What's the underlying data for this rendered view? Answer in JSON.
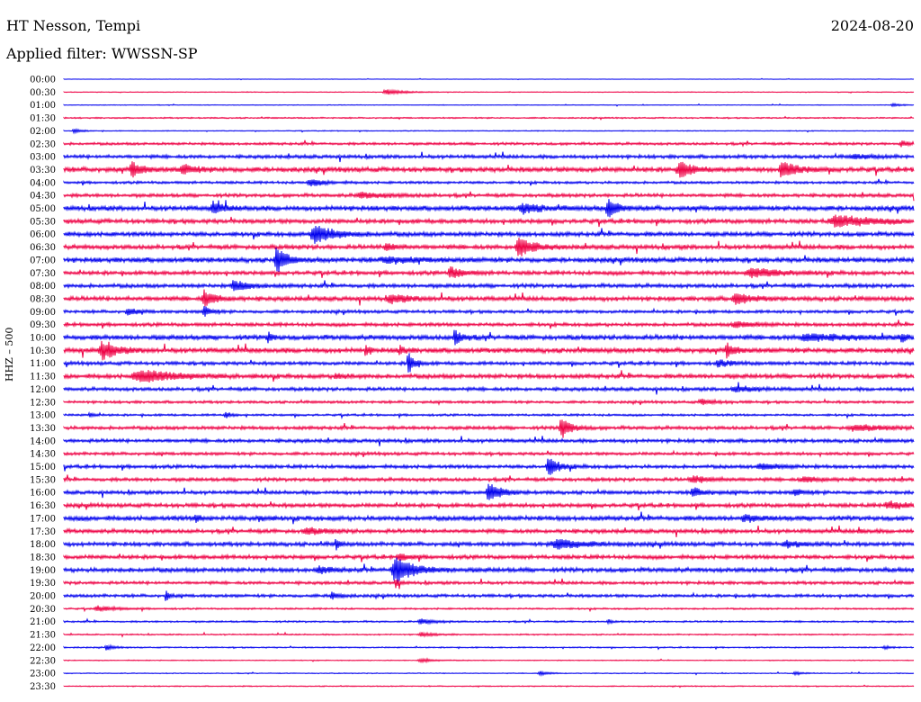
{
  "header": {
    "station": "HT Nesson, Tempi",
    "date": "2024-08-20",
    "filter": "Applied filter: WWSSN-SP",
    "ylabel": "HHZ – 500"
  },
  "chart_data": {
    "type": "line",
    "title": "HT Nesson, Tempi",
    "subtitle": "Applied filter: WWSSN-SP",
    "ylabel": "HHZ – 500",
    "xlabel": "",
    "grid": false,
    "colors": [
      "#0000ee",
      "#ee0044"
    ],
    "rows": [
      {
        "label": "00:00",
        "noise": 0.05,
        "events": []
      },
      {
        "label": "00:30",
        "noise": 0.08,
        "events": [
          [
            0.38,
            0.5,
            0.02
          ]
        ]
      },
      {
        "label": "01:00",
        "noise": 0.08,
        "events": [
          [
            0.975,
            0.3,
            0.01
          ]
        ]
      },
      {
        "label": "01:30",
        "noise": 0.15,
        "events": []
      },
      {
        "label": "02:00",
        "noise": 0.1,
        "events": [
          [
            0.012,
            0.45,
            0.008
          ]
        ]
      },
      {
        "label": "02:30",
        "noise": 0.3,
        "events": [
          [
            0.985,
            0.5,
            0.01
          ]
        ]
      },
      {
        "label": "03:00",
        "noise": 0.4,
        "events": [
          [
            0.93,
            0.4,
            0.02
          ]
        ]
      },
      {
        "label": "03:30",
        "noise": 0.55,
        "events": [
          [
            0.08,
            1.6,
            0.01
          ],
          [
            0.14,
            0.9,
            0.015
          ],
          [
            0.725,
            1.8,
            0.012
          ],
          [
            0.845,
            1.8,
            0.015
          ]
        ]
      },
      {
        "label": "04:00",
        "noise": 0.3,
        "events": [
          [
            0.29,
            0.7,
            0.015
          ]
        ]
      },
      {
        "label": "04:30",
        "noise": 0.4,
        "events": [
          [
            0.35,
            0.5,
            0.03
          ]
        ]
      },
      {
        "label": "05:00",
        "noise": 0.55,
        "events": [
          [
            0.175,
            1.1,
            0.012
          ],
          [
            0.54,
            0.9,
            0.02
          ],
          [
            0.64,
            1.9,
            0.01
          ]
        ]
      },
      {
        "label": "05:30",
        "noise": 0.5,
        "events": [
          [
            0.91,
            1.1,
            0.04
          ]
        ]
      },
      {
        "label": "06:00",
        "noise": 0.5,
        "events": [
          [
            0.295,
            2.0,
            0.02
          ]
        ]
      },
      {
        "label": "06:30",
        "noise": 0.5,
        "events": [
          [
            0.38,
            0.7,
            0.01
          ],
          [
            0.535,
            2.2,
            0.015
          ]
        ]
      },
      {
        "label": "07:00",
        "noise": 0.55,
        "events": [
          [
            0.25,
            2.8,
            0.01
          ],
          [
            0.38,
            0.6,
            0.03
          ]
        ]
      },
      {
        "label": "07:30",
        "noise": 0.45,
        "events": [
          [
            0.455,
            1.2,
            0.012
          ],
          [
            0.81,
            1.0,
            0.03
          ]
        ]
      },
      {
        "label": "08:00",
        "noise": 0.45,
        "events": [
          [
            0.2,
            1.1,
            0.015
          ]
        ]
      },
      {
        "label": "08:30",
        "noise": 0.5,
        "events": [
          [
            0.165,
            1.6,
            0.012
          ],
          [
            0.385,
            0.8,
            0.02
          ],
          [
            0.79,
            1.2,
            0.015
          ]
        ]
      },
      {
        "label": "09:00",
        "noise": 0.35,
        "events": [
          [
            0.075,
            0.7,
            0.01
          ],
          [
            0.165,
            1.0,
            0.008
          ]
        ]
      },
      {
        "label": "09:30",
        "noise": 0.4,
        "events": [
          [
            0.79,
            0.6,
            0.02
          ]
        ]
      },
      {
        "label": "10:00",
        "noise": 0.55,
        "events": [
          [
            0.24,
            1.3,
            0.004
          ],
          [
            0.46,
            1.5,
            0.008
          ],
          [
            0.875,
            0.7,
            0.04
          ],
          [
            0.985,
            1.0,
            0.004
          ]
        ]
      },
      {
        "label": "10:30",
        "noise": 0.55,
        "events": [
          [
            0.045,
            1.8,
            0.015
          ],
          [
            0.355,
            1.2,
            0.004
          ],
          [
            0.395,
            1.0,
            0.005
          ],
          [
            0.78,
            1.5,
            0.008
          ]
        ]
      },
      {
        "label": "11:00",
        "noise": 0.4,
        "events": [
          [
            0.405,
            2.6,
            0.006
          ],
          [
            0.77,
            0.6,
            0.015
          ]
        ]
      },
      {
        "label": "11:30",
        "noise": 0.5,
        "events": [
          [
            0.09,
            1.2,
            0.04
          ],
          [
            0.32,
            0.5,
            0.01
          ]
        ]
      },
      {
        "label": "12:00",
        "noise": 0.4,
        "events": [
          [
            0.79,
            0.6,
            0.02
          ]
        ]
      },
      {
        "label": "12:30",
        "noise": 0.3,
        "events": [
          [
            0.75,
            0.5,
            0.015
          ]
        ]
      },
      {
        "label": "13:00",
        "noise": 0.25,
        "events": [
          [
            0.03,
            0.5,
            0.005
          ],
          [
            0.19,
            0.6,
            0.006
          ]
        ]
      },
      {
        "label": "13:30",
        "noise": 0.4,
        "events": [
          [
            0.585,
            2.2,
            0.01
          ],
          [
            0.93,
            0.6,
            0.03
          ]
        ]
      },
      {
        "label": "14:00",
        "noise": 0.4,
        "events": []
      },
      {
        "label": "14:30",
        "noise": 0.35,
        "events": []
      },
      {
        "label": "15:00",
        "noise": 0.4,
        "events": [
          [
            0.57,
            1.8,
            0.012
          ],
          [
            0.82,
            0.6,
            0.02
          ]
        ]
      },
      {
        "label": "15:30",
        "noise": 0.4,
        "events": [
          [
            0.74,
            0.6,
            0.02
          ],
          [
            0.87,
            0.5,
            0.02
          ]
        ]
      },
      {
        "label": "16:00",
        "noise": 0.4,
        "events": [
          [
            0.5,
            2.0,
            0.012
          ],
          [
            0.74,
            0.9,
            0.012
          ],
          [
            0.86,
            0.6,
            0.01
          ]
        ]
      },
      {
        "label": "16:30",
        "noise": 0.45,
        "events": [
          [
            0.97,
            0.7,
            0.02
          ]
        ]
      },
      {
        "label": "17:00",
        "noise": 0.55,
        "events": [
          [
            0.155,
            1.0,
            0.004
          ],
          [
            0.23,
            0.6,
            0.006
          ],
          [
            0.8,
            0.6,
            0.015
          ]
        ]
      },
      {
        "label": "17:30",
        "noise": 0.45,
        "events": [
          [
            0.285,
            0.6,
            0.02
          ],
          [
            0.935,
            0.5,
            0.005
          ]
        ]
      },
      {
        "label": "18:00",
        "noise": 0.45,
        "events": [
          [
            0.32,
            1.2,
            0.004
          ],
          [
            0.58,
            1.0,
            0.03
          ],
          [
            0.85,
            0.5,
            0.02
          ]
        ]
      },
      {
        "label": "18:30",
        "noise": 0.45,
        "events": [
          [
            0.395,
            0.7,
            0.01
          ]
        ]
      },
      {
        "label": "19:00",
        "noise": 0.5,
        "events": [
          [
            0.39,
            2.6,
            0.02
          ],
          [
            0.3,
            0.6,
            0.015
          ]
        ]
      },
      {
        "label": "19:30",
        "noise": 0.35,
        "events": [
          [
            0.39,
            1.0,
            0.004
          ]
        ]
      },
      {
        "label": "20:00",
        "noise": 0.35,
        "events": [
          [
            0.12,
            1.6,
            0.003
          ],
          [
            0.315,
            0.8,
            0.008
          ]
        ]
      },
      {
        "label": "20:30",
        "noise": 0.2,
        "events": [
          [
            0.04,
            0.5,
            0.02
          ]
        ]
      },
      {
        "label": "21:00",
        "noise": 0.2,
        "events": [
          [
            0.42,
            0.5,
            0.015
          ],
          [
            0.64,
            0.4,
            0.004
          ]
        ]
      },
      {
        "label": "21:30",
        "noise": 0.15,
        "events": [
          [
            0.42,
            0.4,
            0.015
          ]
        ]
      },
      {
        "label": "22:00",
        "noise": 0.15,
        "events": [
          [
            0.05,
            0.5,
            0.008
          ],
          [
            0.965,
            0.4,
            0.005
          ]
        ]
      },
      {
        "label": "22:30",
        "noise": 0.1,
        "events": [
          [
            0.42,
            0.4,
            0.015
          ]
        ]
      },
      {
        "label": "23:00",
        "noise": 0.1,
        "events": [
          [
            0.56,
            0.4,
            0.01
          ],
          [
            0.86,
            0.3,
            0.01
          ]
        ]
      },
      {
        "label": "23:30",
        "noise": 0.12,
        "events": []
      }
    ]
  }
}
